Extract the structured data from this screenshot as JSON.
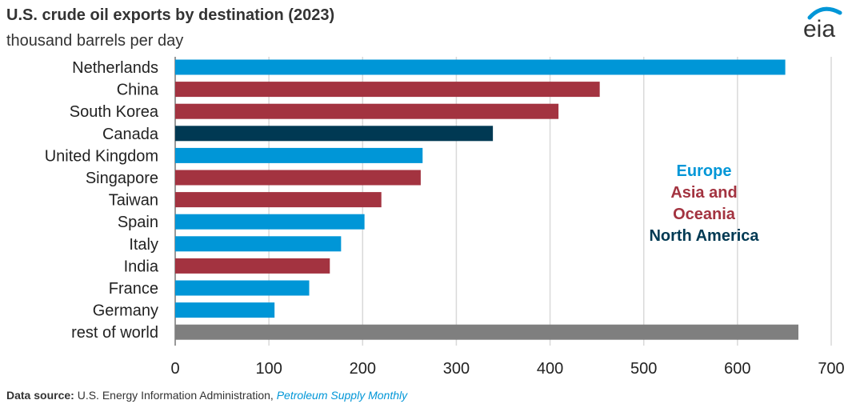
{
  "header": {
    "title": "U.S. crude oil exports by destination (2023)",
    "subtitle": "thousand barrels per day",
    "logo_text": "eia"
  },
  "source": {
    "label": "Data source:",
    "text": "U.S. Energy Information Administration,",
    "publication": "Petroleum Supply Monthly"
  },
  "colors": {
    "Europe": "#0096d7",
    "Asia and Oceania": "#a33340",
    "North America": "#003953",
    "rest of world": "#7f7f7f"
  },
  "chart_data": {
    "type": "bar",
    "orientation": "horizontal",
    "title": "U.S. crude oil exports by destination (2023)",
    "subtitle": "thousand barrels per day",
    "categories": [
      "Netherlands",
      "China",
      "South Korea",
      "Canada",
      "United Kingdom",
      "Singapore",
      "Taiwan",
      "Spain",
      "Italy",
      "India",
      "France",
      "Germany",
      "rest of world"
    ],
    "values": [
      651,
      453,
      409,
      339,
      264,
      262,
      220,
      202,
      177,
      165,
      143,
      106,
      665
    ],
    "groups": [
      "Europe",
      "Asia and Oceania",
      "Asia and Oceania",
      "North America",
      "Europe",
      "Asia and Oceania",
      "Asia and Oceania",
      "Europe",
      "Europe",
      "Asia and Oceania",
      "Europe",
      "Europe",
      "rest of world"
    ],
    "xlim": [
      0,
      700
    ],
    "xticks": [
      0,
      100,
      200,
      300,
      400,
      500,
      600,
      700
    ],
    "grid": true,
    "legend": {
      "placement": "right",
      "entries": [
        "Europe",
        "Asia and\nOceania",
        "North America"
      ],
      "groups": [
        "Europe",
        "Asia and Oceania",
        "North America"
      ]
    }
  }
}
